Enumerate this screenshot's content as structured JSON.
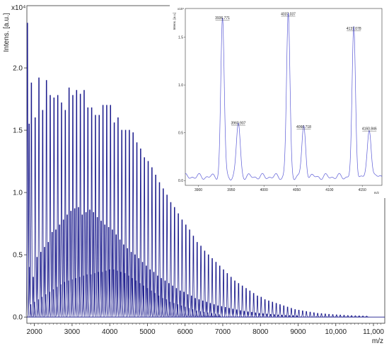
{
  "chart_data": [
    {
      "type": "line",
      "name": "main-spectrum",
      "ylabel": "Intens. [a.u.]",
      "yscale_label": "x10⁴",
      "xlabel": "m/z",
      "xlim": [
        1800,
        11300
      ],
      "ylim": [
        -0.05,
        2.5
      ],
      "xticks": [
        2000,
        3000,
        4000,
        5000,
        6000,
        7000,
        8000,
        9000,
        10000,
        11000
      ],
      "xtick_labels": [
        "2000",
        "3000",
        "4000",
        "5000",
        "6000",
        "7000",
        "8000",
        "9000",
        "10,000",
        "11,000"
      ],
      "yticks": [
        0.0,
        0.5,
        1.0,
        1.5,
        2.0
      ],
      "ytick_labels": [
        "0.0",
        "0.5",
        "1.0",
        "1.5",
        "2.0"
      ],
      "color": "#1a1a8c",
      "series": [
        {
          "values": [
            {
              "x": 1815,
              "y": 2.36
            },
            {
              "x": 1860,
              "y": 1.55
            },
            {
              "x": 1920,
              "y": 1.88
            },
            {
              "x": 2020,
              "y": 1.6
            },
            {
              "x": 2120,
              "y": 1.92
            },
            {
              "x": 2220,
              "y": 1.66
            },
            {
              "x": 2320,
              "y": 1.9
            },
            {
              "x": 2420,
              "y": 1.78
            },
            {
              "x": 2520,
              "y": 1.76
            },
            {
              "x": 2620,
              "y": 1.78
            },
            {
              "x": 2720,
              "y": 1.72
            },
            {
              "x": 2820,
              "y": 1.66
            },
            {
              "x": 2920,
              "y": 1.84
            },
            {
              "x": 3020,
              "y": 1.78
            },
            {
              "x": 3120,
              "y": 1.82
            },
            {
              "x": 3220,
              "y": 1.79
            },
            {
              "x": 3320,
              "y": 1.82
            },
            {
              "x": 3420,
              "y": 1.68
            },
            {
              "x": 3520,
              "y": 1.68
            },
            {
              "x": 3620,
              "y": 1.62
            },
            {
              "x": 3720,
              "y": 1.62
            },
            {
              "x": 3820,
              "y": 1.7
            },
            {
              "x": 3920,
              "y": 1.7
            },
            {
              "x": 4020,
              "y": 1.7
            },
            {
              "x": 4120,
              "y": 1.56
            },
            {
              "x": 4220,
              "y": 1.6
            },
            {
              "x": 4320,
              "y": 1.5
            },
            {
              "x": 4420,
              "y": 1.5
            },
            {
              "x": 4520,
              "y": 1.5
            },
            {
              "x": 4620,
              "y": 1.48
            },
            {
              "x": 4720,
              "y": 1.4
            },
            {
              "x": 4820,
              "y": 1.35
            },
            {
              "x": 4920,
              "y": 1.28
            },
            {
              "x": 5020,
              "y": 1.25
            },
            {
              "x": 5120,
              "y": 1.2
            },
            {
              "x": 5220,
              "y": 1.14
            },
            {
              "x": 5320,
              "y": 1.08
            },
            {
              "x": 5420,
              "y": 1.03
            },
            {
              "x": 5520,
              "y": 0.98
            },
            {
              "x": 5620,
              "y": 0.92
            },
            {
              "x": 5720,
              "y": 0.88
            },
            {
              "x": 5820,
              "y": 0.83
            },
            {
              "x": 5920,
              "y": 0.78
            },
            {
              "x": 6020,
              "y": 0.74
            },
            {
              "x": 6120,
              "y": 0.7
            },
            {
              "x": 6220,
              "y": 0.65
            },
            {
              "x": 6320,
              "y": 0.6
            },
            {
              "x": 6420,
              "y": 0.57
            },
            {
              "x": 6520,
              "y": 0.53
            },
            {
              "x": 6620,
              "y": 0.5
            },
            {
              "x": 6720,
              "y": 0.47
            },
            {
              "x": 6820,
              "y": 0.44
            },
            {
              "x": 6920,
              "y": 0.41
            },
            {
              "x": 7020,
              "y": 0.38
            },
            {
              "x": 7120,
              "y": 0.35
            },
            {
              "x": 7220,
              "y": 0.32
            },
            {
              "x": 7320,
              "y": 0.29
            },
            {
              "x": 7420,
              "y": 0.27
            },
            {
              "x": 7520,
              "y": 0.25
            },
            {
              "x": 7620,
              "y": 0.23
            },
            {
              "x": 7720,
              "y": 0.21
            },
            {
              "x": 7820,
              "y": 0.19
            },
            {
              "x": 7920,
              "y": 0.17
            },
            {
              "x": 8020,
              "y": 0.16
            },
            {
              "x": 8120,
              "y": 0.14
            },
            {
              "x": 8220,
              "y": 0.13
            },
            {
              "x": 8320,
              "y": 0.12
            },
            {
              "x": 8420,
              "y": 0.11
            },
            {
              "x": 8520,
              "y": 0.1
            },
            {
              "x": 8620,
              "y": 0.09
            },
            {
              "x": 8720,
              "y": 0.08
            },
            {
              "x": 8820,
              "y": 0.07
            },
            {
              "x": 8920,
              "y": 0.06
            },
            {
              "x": 9020,
              "y": 0.055
            },
            {
              "x": 9120,
              "y": 0.05
            },
            {
              "x": 9220,
              "y": 0.045
            },
            {
              "x": 9320,
              "y": 0.04
            },
            {
              "x": 9420,
              "y": 0.035
            },
            {
              "x": 9520,
              "y": 0.03
            },
            {
              "x": 9620,
              "y": 0.028
            },
            {
              "x": 9720,
              "y": 0.025
            },
            {
              "x": 9820,
              "y": 0.022
            },
            {
              "x": 9920,
              "y": 0.02
            },
            {
              "x": 10020,
              "y": 0.018
            },
            {
              "x": 10120,
              "y": 0.016
            },
            {
              "x": 10220,
              "y": 0.014
            },
            {
              "x": 10320,
              "y": 0.012
            },
            {
              "x": 10420,
              "y": 0.011
            },
            {
              "x": 10520,
              "y": 0.01
            },
            {
              "x": 10620,
              "y": 0.009
            },
            {
              "x": 10720,
              "y": 0.008
            },
            {
              "x": 10820,
              "y": 0.007
            }
          ]
        },
        {
          "values": [
            {
              "x": 1870,
              "y": 0.4
            },
            {
              "x": 1970,
              "y": 0.32
            },
            {
              "x": 2070,
              "y": 0.48
            },
            {
              "x": 2170,
              "y": 0.52
            },
            {
              "x": 2270,
              "y": 0.56
            },
            {
              "x": 2370,
              "y": 0.6
            },
            {
              "x": 2470,
              "y": 0.68
            },
            {
              "x": 2570,
              "y": 0.7
            },
            {
              "x": 2670,
              "y": 0.74
            },
            {
              "x": 2770,
              "y": 0.78
            },
            {
              "x": 2870,
              "y": 0.82
            },
            {
              "x": 2970,
              "y": 0.85
            },
            {
              "x": 3070,
              "y": 0.87
            },
            {
              "x": 3170,
              "y": 0.88
            },
            {
              "x": 3270,
              "y": 0.82
            },
            {
              "x": 3370,
              "y": 0.84
            },
            {
              "x": 3470,
              "y": 0.86
            },
            {
              "x": 3570,
              "y": 0.84
            },
            {
              "x": 3670,
              "y": 0.8
            },
            {
              "x": 3770,
              "y": 0.77
            },
            {
              "x": 3870,
              "y": 0.74
            },
            {
              "x": 3970,
              "y": 0.72
            },
            {
              "x": 4070,
              "y": 0.7
            },
            {
              "x": 4170,
              "y": 0.66
            },
            {
              "x": 4270,
              "y": 0.62
            },
            {
              "x": 4370,
              "y": 0.58
            },
            {
              "x": 4470,
              "y": 0.55
            },
            {
              "x": 4570,
              "y": 0.52
            },
            {
              "x": 4670,
              "y": 0.5
            },
            {
              "x": 4770,
              "y": 0.47
            },
            {
              "x": 4870,
              "y": 0.44
            },
            {
              "x": 4970,
              "y": 0.41
            },
            {
              "x": 5070,
              "y": 0.38
            },
            {
              "x": 5170,
              "y": 0.36
            },
            {
              "x": 5270,
              "y": 0.33
            },
            {
              "x": 5370,
              "y": 0.31
            },
            {
              "x": 5470,
              "y": 0.29
            },
            {
              "x": 5570,
              "y": 0.27
            },
            {
              "x": 5670,
              "y": 0.25
            },
            {
              "x": 5770,
              "y": 0.23
            },
            {
              "x": 5870,
              "y": 0.21
            },
            {
              "x": 5970,
              "y": 0.2
            },
            {
              "x": 6070,
              "y": 0.18
            },
            {
              "x": 6170,
              "y": 0.17
            },
            {
              "x": 6270,
              "y": 0.15
            },
            {
              "x": 6370,
              "y": 0.14
            },
            {
              "x": 6470,
              "y": 0.13
            },
            {
              "x": 6570,
              "y": 0.12
            },
            {
              "x": 6670,
              "y": 0.11
            },
            {
              "x": 6770,
              "y": 0.1
            },
            {
              "x": 6870,
              "y": 0.09
            },
            {
              "x": 6970,
              "y": 0.085
            },
            {
              "x": 7070,
              "y": 0.078
            },
            {
              "x": 7170,
              "y": 0.07
            },
            {
              "x": 7270,
              "y": 0.064
            },
            {
              "x": 7370,
              "y": 0.058
            },
            {
              "x": 7470,
              "y": 0.052
            },
            {
              "x": 7570,
              "y": 0.047
            },
            {
              "x": 7670,
              "y": 0.042
            },
            {
              "x": 7770,
              "y": 0.038
            },
            {
              "x": 7870,
              "y": 0.034
            },
            {
              "x": 7970,
              "y": 0.03
            },
            {
              "x": 8070,
              "y": 0.027
            },
            {
              "x": 8170,
              "y": 0.024
            },
            {
              "x": 8270,
              "y": 0.021
            },
            {
              "x": 8370,
              "y": 0.019
            },
            {
              "x": 8470,
              "y": 0.017
            },
            {
              "x": 8570,
              "y": 0.015
            },
            {
              "x": 8670,
              "y": 0.013
            },
            {
              "x": 8770,
              "y": 0.012
            },
            {
              "x": 8870,
              "y": 0.011
            },
            {
              "x": 8970,
              "y": 0.01
            }
          ]
        },
        {
          "values": [
            {
              "x": 1900,
              "y": 0.1
            },
            {
              "x": 2000,
              "y": 0.12
            },
            {
              "x": 2100,
              "y": 0.14
            },
            {
              "x": 2200,
              "y": 0.16
            },
            {
              "x": 2300,
              "y": 0.18
            },
            {
              "x": 2400,
              "y": 0.2
            },
            {
              "x": 2500,
              "y": 0.22
            },
            {
              "x": 2600,
              "y": 0.24
            },
            {
              "x": 2700,
              "y": 0.26
            },
            {
              "x": 2800,
              "y": 0.28
            },
            {
              "x": 2900,
              "y": 0.29
            },
            {
              "x": 3000,
              "y": 0.3
            },
            {
              "x": 3100,
              "y": 0.31
            },
            {
              "x": 3200,
              "y": 0.32
            },
            {
              "x": 3300,
              "y": 0.33
            },
            {
              "x": 3400,
              "y": 0.34
            },
            {
              "x": 3500,
              "y": 0.34
            },
            {
              "x": 3600,
              "y": 0.35
            },
            {
              "x": 3700,
              "y": 0.36
            },
            {
              "x": 3800,
              "y": 0.36
            },
            {
              "x": 3900,
              "y": 0.37
            },
            {
              "x": 4000,
              "y": 0.38
            },
            {
              "x": 4100,
              "y": 0.38
            },
            {
              "x": 4200,
              "y": 0.37
            },
            {
              "x": 4300,
              "y": 0.36
            },
            {
              "x": 4400,
              "y": 0.35
            },
            {
              "x": 4500,
              "y": 0.33
            },
            {
              "x": 4600,
              "y": 0.31
            },
            {
              "x": 4700,
              "y": 0.29
            },
            {
              "x": 4800,
              "y": 0.27
            },
            {
              "x": 4900,
              "y": 0.25
            },
            {
              "x": 5000,
              "y": 0.23
            },
            {
              "x": 5100,
              "y": 0.21
            },
            {
              "x": 5200,
              "y": 0.19
            },
            {
              "x": 5300,
              "y": 0.17
            },
            {
              "x": 5400,
              "y": 0.15
            },
            {
              "x": 5500,
              "y": 0.14
            },
            {
              "x": 5600,
              "y": 0.12
            },
            {
              "x": 5700,
              "y": 0.11
            },
            {
              "x": 5800,
              "y": 0.1
            },
            {
              "x": 5900,
              "y": 0.09
            },
            {
              "x": 6000,
              "y": 0.08
            },
            {
              "x": 6100,
              "y": 0.07
            },
            {
              "x": 6200,
              "y": 0.06
            },
            {
              "x": 6300,
              "y": 0.05
            },
            {
              "x": 6400,
              "y": 0.045
            },
            {
              "x": 6500,
              "y": 0.04
            },
            {
              "x": 6600,
              "y": 0.035
            },
            {
              "x": 6700,
              "y": 0.03
            },
            {
              "x": 6800,
              "y": 0.025
            },
            {
              "x": 6900,
              "y": 0.02
            }
          ]
        }
      ]
    },
    {
      "type": "line",
      "name": "inset-spectrum",
      "ylabel": "Intens. [a.u.]",
      "yscale_label": "x10⁴",
      "xlabel": "m/z",
      "xlim": [
        3880,
        4180
      ],
      "ylim": [
        -0.05,
        1.8
      ],
      "xticks": [
        3900,
        3950,
        4000,
        4050,
        4100,
        4150
      ],
      "xtick_labels": [
        "3900",
        "3950",
        "4000",
        "4050",
        "4100",
        "4150"
      ],
      "yticks": [
        0.0,
        0.5,
        1.0,
        1.5
      ],
      "ytick_labels": [
        "0.0",
        "0.5",
        "1.0",
        "1.5"
      ],
      "color": "#5a5ad6",
      "peaks": [
        {
          "x": 3936.771,
          "y": 1.66,
          "label": "3936.771"
        },
        {
          "x": 3960.907,
          "y": 0.56,
          "label": "3960.907"
        },
        {
          "x": 4037.037,
          "y": 1.7,
          "label": "4037.037"
        },
        {
          "x": 4060.718,
          "y": 0.52,
          "label": "4060.718"
        },
        {
          "x": 4137.078,
          "y": 1.55,
          "label": "4137.078"
        },
        {
          "x": 4160.846,
          "y": 0.5,
          "label": "4160.846"
        }
      ],
      "baseline": 0.04
    }
  ]
}
